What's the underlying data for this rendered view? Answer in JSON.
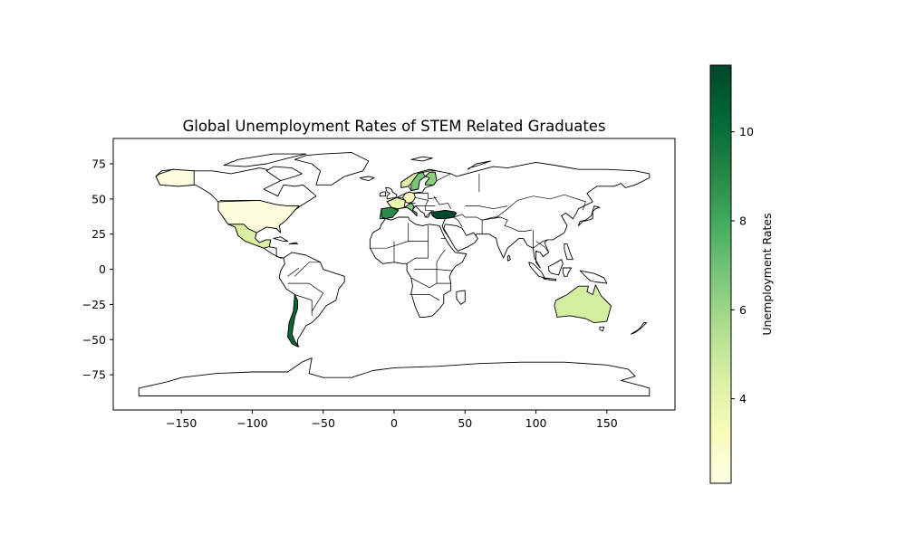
{
  "chart_data": {
    "type": "choropleth-map",
    "title": "Global Unemployment Rates of STEM Related Graduates",
    "xlim": [
      -198,
      198
    ],
    "ylim": [
      -100,
      93
    ],
    "x_ticks": [
      -150,
      -100,
      -50,
      0,
      50,
      100,
      150
    ],
    "x_tick_labels": [
      "−150",
      "−100",
      "−50",
      "0",
      "50",
      "100",
      "150"
    ],
    "y_ticks": [
      75,
      50,
      25,
      0,
      -25,
      -50,
      -75
    ],
    "y_tick_labels": [
      "75",
      "50",
      "25",
      "0",
      "−25",
      "−50",
      "−75"
    ],
    "colormap": "YlGn",
    "colorbar": {
      "label": "Unemployment Rates",
      "range": [
        2.1,
        11.5
      ],
      "ticks": [
        4,
        6,
        8,
        10
      ],
      "tick_labels": [
        "4",
        "6",
        "8",
        "10"
      ]
    },
    "regions": [
      {
        "name": "United States",
        "value": 2.3
      },
      {
        "name": "Alaska (United States)",
        "value": 2.3
      },
      {
        "name": "Mexico",
        "value": 4.4
      },
      {
        "name": "Chile",
        "value": 10.2
      },
      {
        "name": "Australia",
        "value": 4.6
      },
      {
        "name": "Norway",
        "value": 4.3
      },
      {
        "name": "Sweden",
        "value": 6.8
      },
      {
        "name": "Finland",
        "value": 6.4
      },
      {
        "name": "Germany",
        "value": 3.2
      },
      {
        "name": "France",
        "value": 3.8
      },
      {
        "name": "Spain",
        "value": 8.9
      },
      {
        "name": "Italy",
        "value": 6.5
      },
      {
        "name": "Turkey",
        "value": 11.4
      }
    ]
  }
}
